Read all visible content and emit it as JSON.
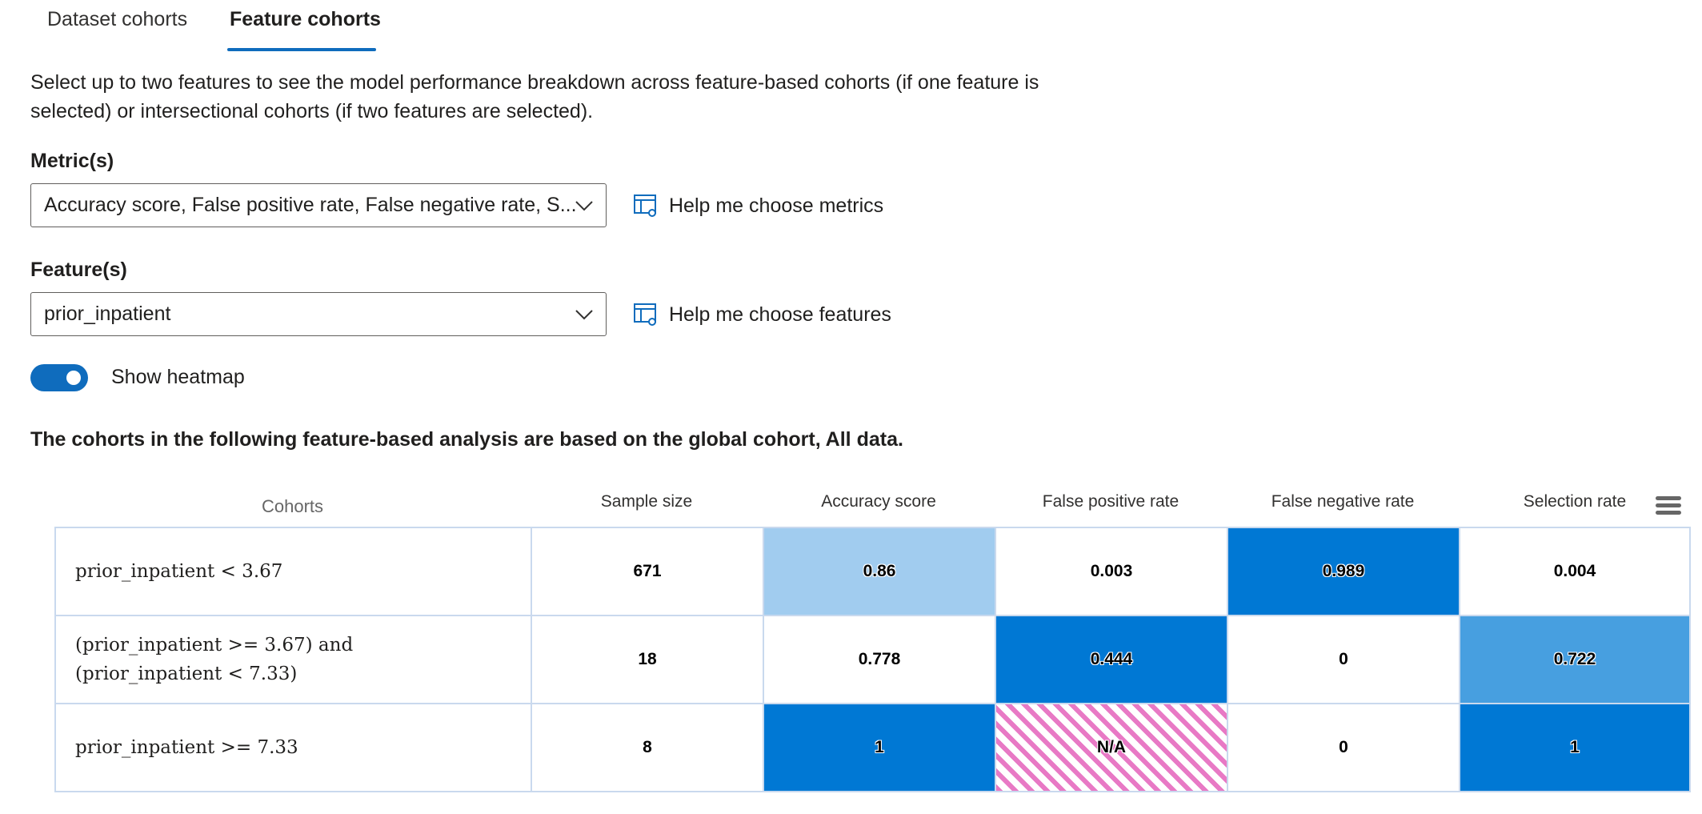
{
  "tabs": [
    {
      "label": "Dataset cohorts",
      "active": false
    },
    {
      "label": "Feature cohorts",
      "active": true
    }
  ],
  "description": "Select up to two features to see the model performance breakdown across feature-based cohorts (if one feature is selected) or intersectional cohorts (if two features are selected).",
  "metrics": {
    "label": "Metric(s)",
    "value": "Accuracy score, False positive rate, False negative rate, S...",
    "help_link": "Help me choose metrics"
  },
  "features": {
    "label": "Feature(s)",
    "value": "prior_inpatient",
    "help_link": "Help me choose features"
  },
  "heatmap_toggle": {
    "label": "Show heatmap",
    "on": true
  },
  "analysis_note": "The cohorts in the following feature-based analysis are based on the global cohort, All data.",
  "table": {
    "headers": [
      "Cohorts",
      "Sample size",
      "Accuracy score",
      "False positive rate",
      "False negative rate",
      "Selection rate"
    ],
    "rows": [
      {
        "cohort": [
          "prior_inpatient < 3.67"
        ],
        "sample_size": "671",
        "accuracy": "0.86",
        "fpr": "0.003",
        "fnr": "0.989",
        "selection": "0.004"
      },
      {
        "cohort": [
          "(prior_inpatient >= 3.67) and",
          "(prior_inpatient < 7.33)"
        ],
        "sample_size": "18",
        "accuracy": "0.778",
        "fpr": "0.444",
        "fnr": "0",
        "selection": "0.722"
      },
      {
        "cohort": [
          "prior_inpatient >= 7.33"
        ],
        "sample_size": "8",
        "accuracy": "1",
        "fpr": "N/A",
        "fnr": "0",
        "selection": "1"
      }
    ]
  },
  "colors": {
    "accent": "#0f6cbd",
    "heat_dark": "#0078d4",
    "heat_mid": "#479fe0",
    "heat_light": "#a1ccef",
    "na_hatch": "#e879c5"
  }
}
